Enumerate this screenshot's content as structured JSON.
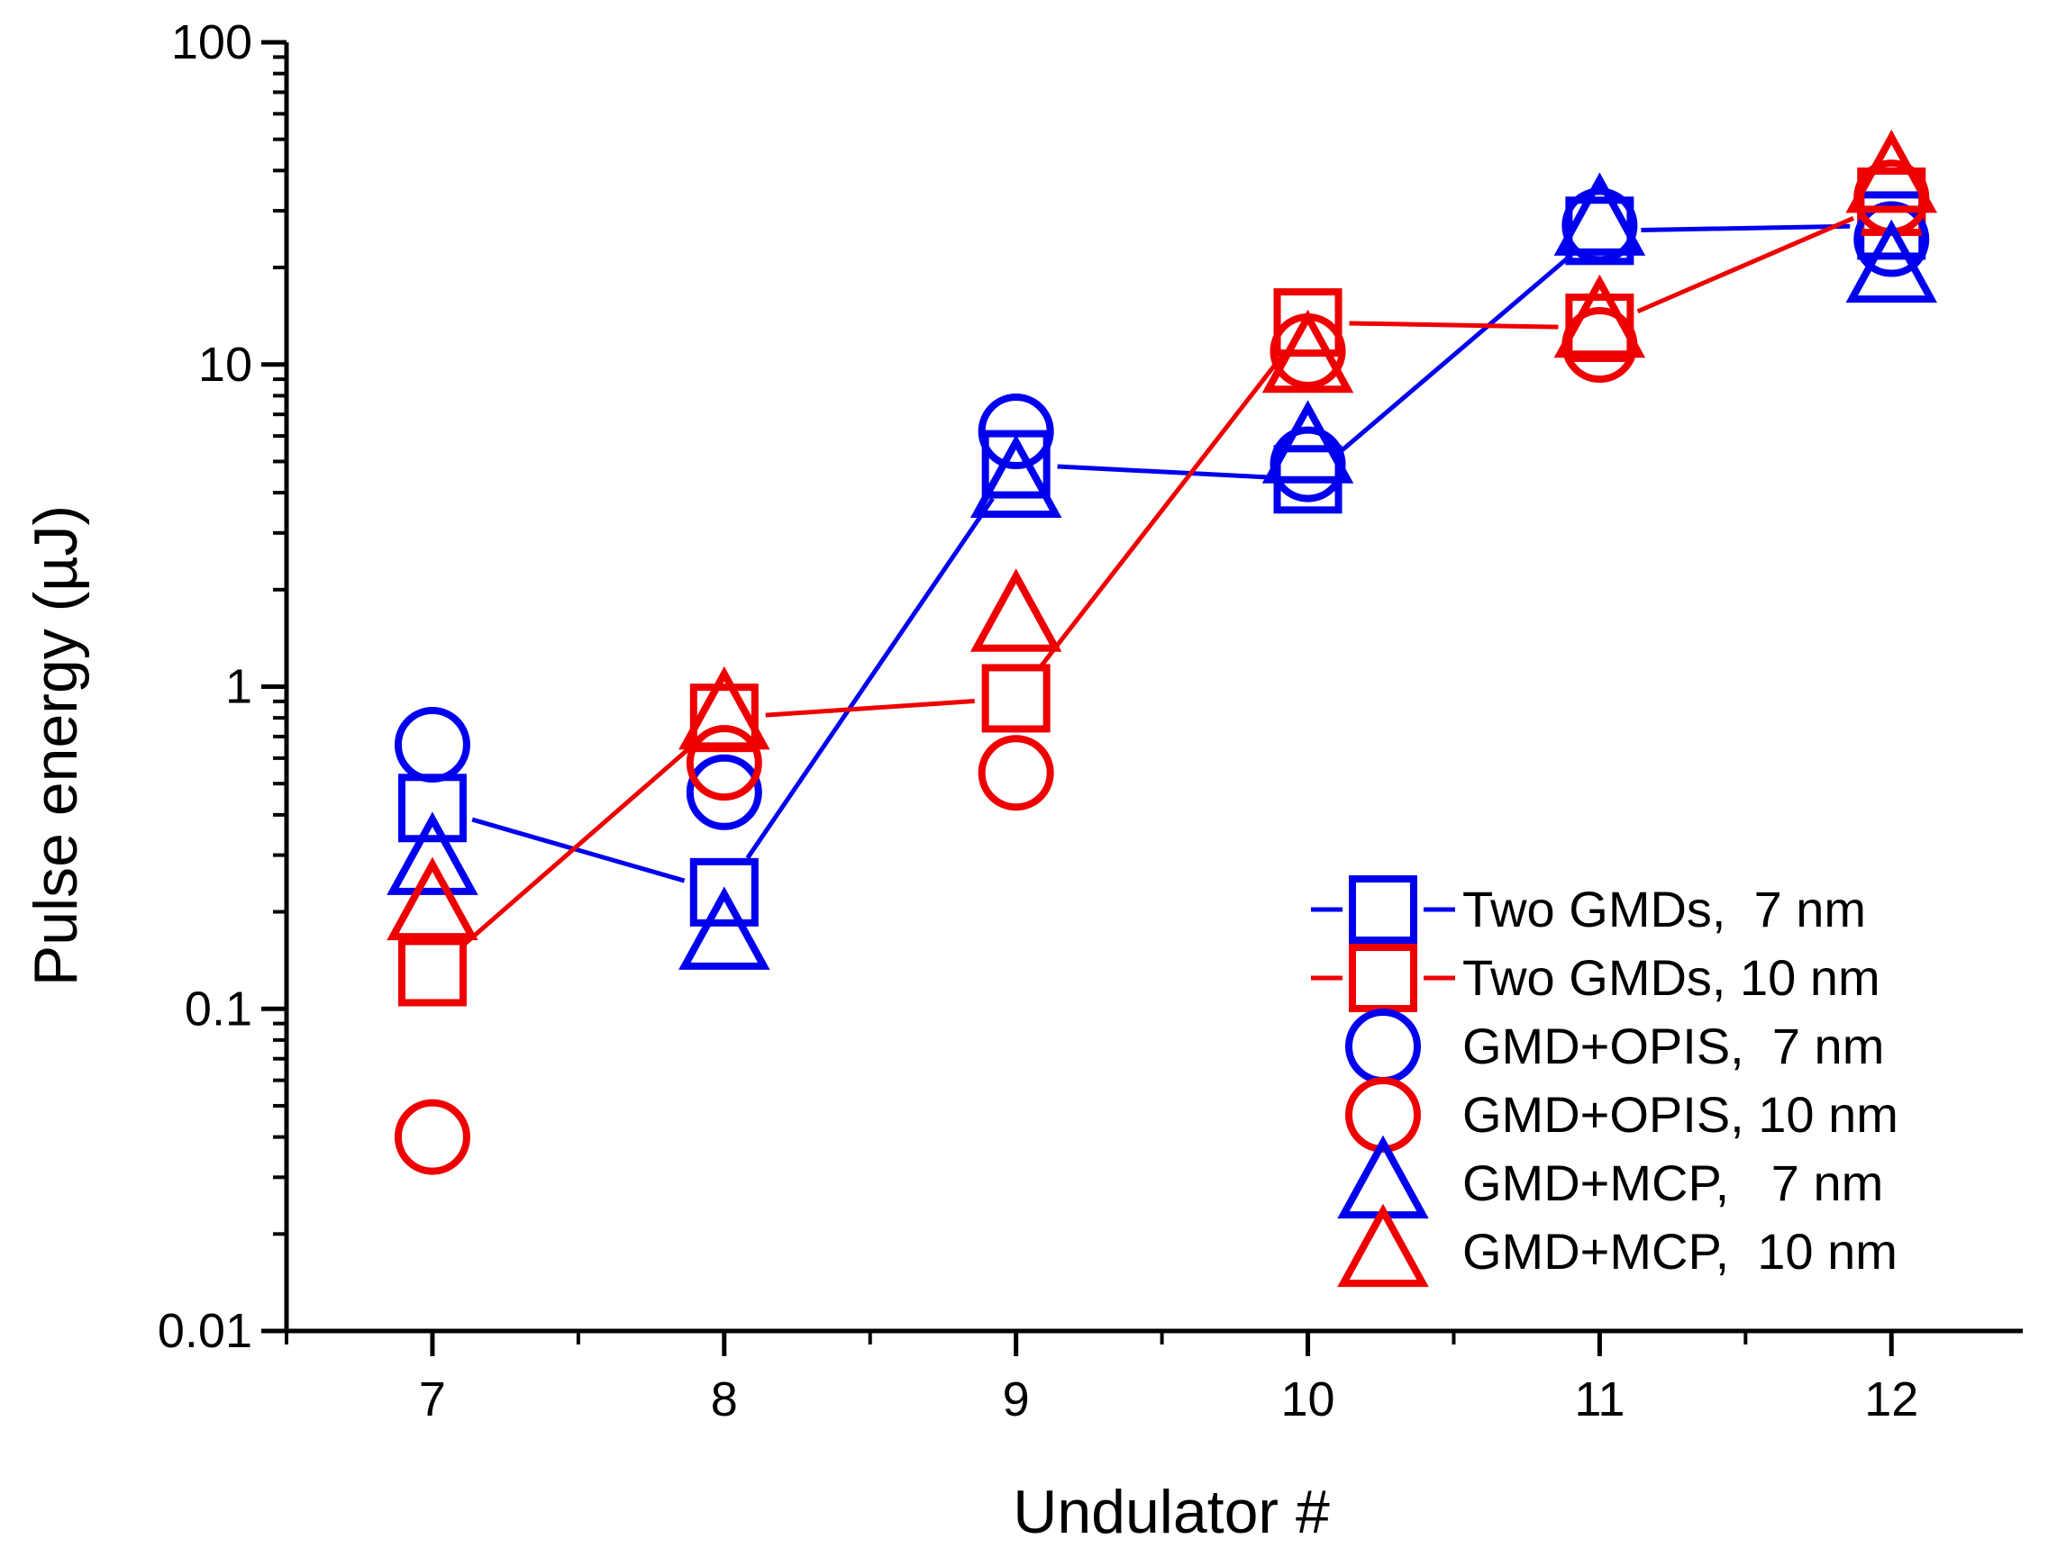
{
  "chart_data": {
    "type": "scatter",
    "title": "",
    "xlabel": "Undulator #",
    "ylabel": "Pulse energy (µJ)",
    "xlim": [
      6.5,
      12.45
    ],
    "ylim": [
      0.01,
      100
    ],
    "yscale": "log",
    "x_ticks": [
      7,
      8,
      9,
      10,
      11,
      12
    ],
    "x_tick_labels": [
      "7",
      "8",
      "9",
      "10",
      "11",
      "12"
    ],
    "y_ticks": [
      0.01,
      0.1,
      1,
      10,
      100
    ],
    "y_tick_labels": [
      "0.01",
      "0.1",
      "1",
      "10",
      "100"
    ],
    "legend_position": "bottom-right",
    "series": [
      {
        "name": "Two GMDs,  7 nm",
        "marker": "square",
        "color": "#0000ee",
        "line": true,
        "x": [
          7,
          8,
          9,
          10,
          11,
          12
        ],
        "values": [
          0.42,
          0.23,
          4.9,
          4.4,
          26,
          27
        ]
      },
      {
        "name": "Two GMDs, 10 nm",
        "marker": "square",
        "color": "#ee0000",
        "line": true,
        "x": [
          7,
          8,
          9,
          10,
          11,
          12
        ],
        "values": [
          0.13,
          0.8,
          0.92,
          13.5,
          13,
          32
        ]
      },
      {
        "name": "GMD+OPIS,  7 nm",
        "marker": "circle",
        "color": "#0000ee",
        "line": false,
        "x": [
          7,
          8,
          9,
          10,
          11,
          12
        ],
        "values": [
          0.66,
          0.47,
          6.2,
          4.9,
          27,
          24.5
        ]
      },
      {
        "name": "GMD+OPIS, 10 nm",
        "marker": "circle",
        "color": "#ee0000",
        "line": false,
        "x": [
          7,
          8,
          9,
          10,
          11,
          12
        ],
        "values": [
          0.04,
          0.58,
          0.54,
          11,
          11.5,
          33
        ]
      },
      {
        "name": "GMD+MCP,   7 nm",
        "marker": "triangle",
        "color": "#0000ee",
        "line": false,
        "x": [
          7,
          8,
          9,
          10,
          11,
          12
        ],
        "values": [
          0.29,
          0.17,
          4.3,
          5.5,
          28,
          20
        ]
      },
      {
        "name": "GMD+MCP,  10 nm",
        "marker": "triangle",
        "color": "#ee0000",
        "line": false,
        "x": [
          7,
          8,
          9,
          10,
          11,
          12
        ],
        "values": [
          0.21,
          0.82,
          1.65,
          10.5,
          13.5,
          38
        ]
      }
    ]
  }
}
